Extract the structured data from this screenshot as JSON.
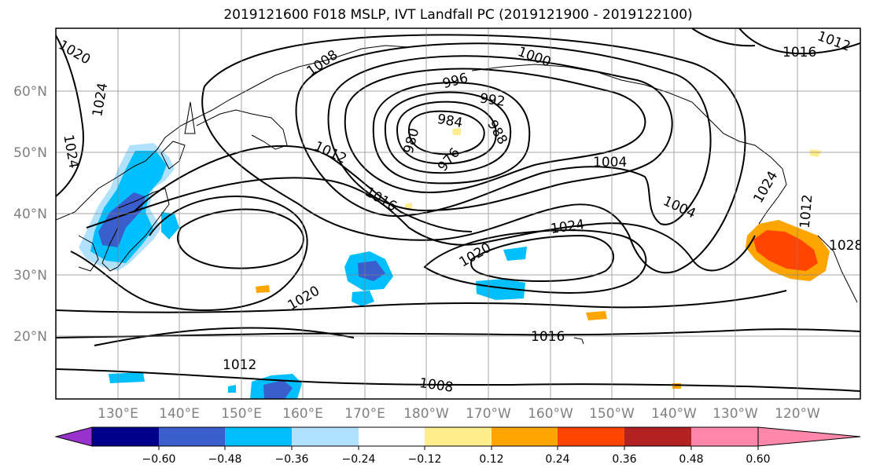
{
  "title": "2019121600 F018 MSLP, IVT Landfall PC (2019121900 - 2019122100)",
  "lat_labels": [
    "60°N",
    "50°N",
    "40°N",
    "30°N",
    "20°N"
  ],
  "lon_labels": [
    "130°E",
    "140°E",
    "150°E",
    "160°E",
    "170°E",
    "180°W",
    "170°W",
    "160°W",
    "150°W",
    "140°W",
    "130°W",
    "120°W"
  ],
  "isobar_labels": [
    {
      "text": "1020"
    },
    {
      "text": "1024"
    },
    {
      "text": "1024"
    },
    {
      "text": "1008"
    },
    {
      "text": "996"
    },
    {
      "text": "1000"
    },
    {
      "text": "992"
    },
    {
      "text": "984"
    },
    {
      "text": "988"
    },
    {
      "text": "980"
    },
    {
      "text": "976"
    },
    {
      "text": "1012"
    },
    {
      "text": "1004"
    },
    {
      "text": "1016"
    },
    {
      "text": "1024"
    },
    {
      "text": "1016"
    },
    {
      "text": "1012"
    },
    {
      "text": "1012"
    },
    {
      "text": "1004"
    },
    {
      "text": "1024"
    },
    {
      "text": "1020"
    },
    {
      "text": "1020"
    },
    {
      "text": "1016"
    },
    {
      "text": "1012"
    },
    {
      "text": "1008"
    },
    {
      "text": "1028"
    }
  ],
  "colorbar": {
    "ticks": [
      "−0.60",
      "−0.48",
      "−0.36",
      "−0.24",
      "−0.12",
      "0.12",
      "0.24",
      "0.36",
      "0.48",
      "0.60"
    ],
    "colors": [
      "#9932cc",
      "#00008b",
      "#3a5fcd",
      "#00bfff",
      "#b0e2ff",
      "#ffffff",
      "#ffec8b",
      "#ffa500",
      "#ff4500",
      "#b22222",
      "#ff88aa"
    ]
  },
  "colors": {
    "contour": "#000000",
    "grid": "#808080",
    "axis_label": "#808080"
  }
}
